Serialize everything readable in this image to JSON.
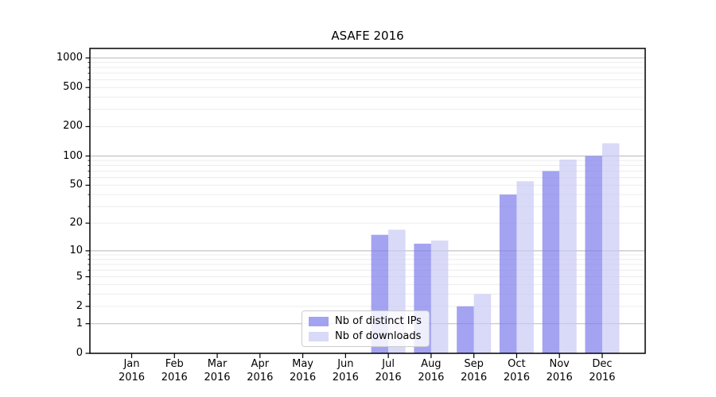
{
  "chart_data": {
    "type": "bar",
    "title": "ASAFE 2016",
    "year_label": "2016",
    "categories": [
      "Jan",
      "Feb",
      "Mar",
      "Apr",
      "May",
      "Jun",
      "Jul",
      "Aug",
      "Sep",
      "Oct",
      "Nov",
      "Dec"
    ],
    "series": [
      {
        "name": "Nb of distinct IPs",
        "color": "rgba(124,124,236,0.70)",
        "values": [
          0,
          0,
          0,
          0,
          0,
          0,
          15,
          12,
          2,
          40,
          70,
          100
        ]
      },
      {
        "name": "Nb of downloads",
        "color": "rgba(201,201,245,0.70)",
        "values": [
          0,
          0,
          0,
          0,
          0,
          0,
          17,
          13,
          3,
          55,
          92,
          135
        ]
      }
    ],
    "y_axis": {
      "scale": "log1p",
      "tick_labels": [
        "0",
        "1",
        "2",
        "5",
        "10",
        "20",
        "50",
        "100",
        "200",
        "500",
        "1000"
      ],
      "tick_values": [
        0,
        1,
        2,
        5,
        10,
        20,
        50,
        100,
        200,
        500,
        1000
      ],
      "major_grid_values": [
        1,
        10,
        100,
        1000
      ],
      "minor_grid_values": [
        2,
        3,
        4,
        5,
        6,
        7,
        8,
        9,
        20,
        30,
        40,
        50,
        60,
        70,
        80,
        90,
        200,
        300,
        400,
        500,
        600,
        700,
        800,
        900
      ],
      "range_min": 0,
      "range_max": 1000
    },
    "legend_position": "lower center",
    "grid": true
  },
  "colors": {
    "background": "#ffffff",
    "spine": "#000000",
    "grid_major": "#c3c3c3",
    "grid_minor": "#ececec",
    "text": "#000000"
  }
}
